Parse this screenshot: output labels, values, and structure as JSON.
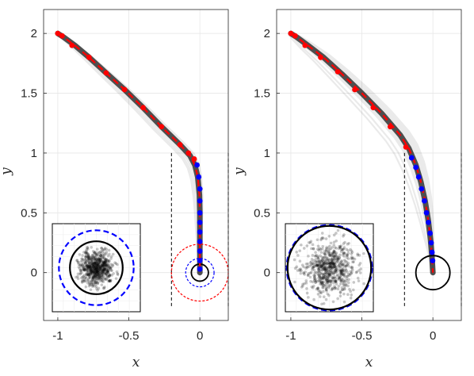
{
  "chart_data": [
    {
      "type": "line",
      "xlabel": "x",
      "ylabel": "y",
      "xlim": [
        -1.1,
        0.2
      ],
      "ylim": [
        -0.4,
        2.2
      ],
      "xticks": [
        -1,
        -0.5,
        0
      ],
      "xtick_labels": [
        "-1",
        "-0.5",
        "0"
      ],
      "yticks": [
        0,
        0.5,
        1,
        1.5,
        2
      ],
      "ytick_labels": [
        "0",
        "0.5",
        "1",
        "1.5",
        "2"
      ],
      "grid": true,
      "bundle_color": "#000000",
      "mean_trajectory": {
        "x": [
          -1.0,
          -0.96,
          -0.88,
          -0.78,
          -0.66,
          -0.53,
          -0.4,
          -0.27,
          -0.14,
          -0.07,
          -0.035,
          -0.015,
          -0.003,
          0.0,
          0.0,
          0.0,
          0.0,
          0.0
        ],
        "y": [
          2.0,
          1.97,
          1.9,
          1.8,
          1.67,
          1.53,
          1.38,
          1.22,
          1.07,
          0.98,
          0.9,
          0.8,
          0.65,
          0.5,
          0.35,
          0.2,
          0.08,
          0.0
        ],
        "color": "#ff0000",
        "dash": true
      },
      "red_markers": {
        "x": [
          -1.0,
          -0.97,
          -0.9,
          -0.78,
          -0.66,
          -0.53,
          -0.4,
          -0.27,
          -0.14,
          -0.08,
          -0.04
        ],
        "y": [
          2.0,
          1.98,
          1.9,
          1.8,
          1.67,
          1.53,
          1.38,
          1.22,
          1.07,
          1.0,
          0.95
        ],
        "color": "#ff0000"
      },
      "blue_markers": {
        "x": [
          -0.02,
          -0.008,
          0.0,
          0.0,
          0.0,
          0.0,
          0.0,
          0.0,
          0.0,
          0.0,
          0.0
        ],
        "y": [
          0.9,
          0.8,
          0.7,
          0.6,
          0.5,
          0.42,
          0.34,
          0.26,
          0.18,
          0.1,
          0.03
        ],
        "color": "#0000ff"
      },
      "vertical_lines": [
        -0.2,
        0.2
      ],
      "vertical_lines_range": [
        -0.3,
        1.0
      ],
      "target_circles": [
        {
          "center": [
            0,
            0
          ],
          "radius": 0.06,
          "color": "#000000",
          "dash": false
        },
        {
          "center": [
            0,
            0
          ],
          "radius": 0.1,
          "color": "#0000ff",
          "dash": true
        },
        {
          "center": [
            0,
            0
          ],
          "radius": 0.2,
          "color": "#ff0000",
          "dash": true
        }
      ],
      "inset": {
        "circles": [
          {
            "radius": 0.85,
            "color": "#0000ff",
            "dash": true
          },
          {
            "radius": 0.6,
            "color": "#000000",
            "dash": false
          }
        ]
      }
    },
    {
      "type": "line",
      "xlabel": "x",
      "ylabel": "y",
      "xlim": [
        -1.1,
        0.2
      ],
      "ylim": [
        -0.4,
        2.2
      ],
      "xticks": [
        -1,
        -0.5,
        0
      ],
      "xtick_labels": [
        "-1",
        "-0.5",
        "0"
      ],
      "yticks": [
        0,
        0.5,
        1,
        1.5,
        2
      ],
      "ytick_labels": [
        "0",
        "0.5",
        "1",
        "1.5",
        "2"
      ],
      "grid": true,
      "bundle_color": "#000000",
      "mean_trajectory": {
        "x": [
          -1.0,
          -0.96,
          -0.88,
          -0.77,
          -0.64,
          -0.5,
          -0.36,
          -0.23,
          -0.17,
          -0.12,
          -0.085,
          -0.055,
          -0.033,
          -0.017,
          -0.007,
          0.0
        ],
        "y": [
          2.0,
          1.97,
          1.9,
          1.8,
          1.66,
          1.5,
          1.33,
          1.15,
          1.04,
          0.9,
          0.76,
          0.6,
          0.44,
          0.28,
          0.14,
          0.0
        ],
        "color": "#ff0000",
        "dash": true
      },
      "red_markers": {
        "x": [
          -1.0,
          -0.97,
          -0.9,
          -0.79,
          -0.67,
          -0.55,
          -0.42,
          -0.3,
          -0.19
        ],
        "y": [
          2.0,
          1.98,
          1.9,
          1.8,
          1.68,
          1.53,
          1.38,
          1.22,
          1.05
        ],
        "color": "#ff0000"
      },
      "blue_markers": {
        "x": [
          -0.15,
          -0.12,
          -0.1,
          -0.08,
          -0.06,
          -0.045,
          -0.032,
          -0.02,
          -0.012,
          -0.006,
          -0.002
        ],
        "y": [
          0.96,
          0.88,
          0.8,
          0.7,
          0.6,
          0.5,
          0.42,
          0.33,
          0.25,
          0.17,
          0.1
        ],
        "color": "#0000ff"
      },
      "vertical_lines": [
        -0.2,
        0.2
      ],
      "vertical_lines_range": [
        -0.3,
        1.0
      ],
      "target_circles": [
        {
          "center": [
            0,
            0
          ],
          "radius": 0.12,
          "color": "#000000",
          "dash": false
        }
      ],
      "inset": {
        "circles": [
          {
            "radius": 0.97,
            "color": "#0000ff",
            "dash": true
          },
          {
            "radius": 0.95,
            "color": "#000000",
            "dash": false
          }
        ]
      }
    }
  ]
}
